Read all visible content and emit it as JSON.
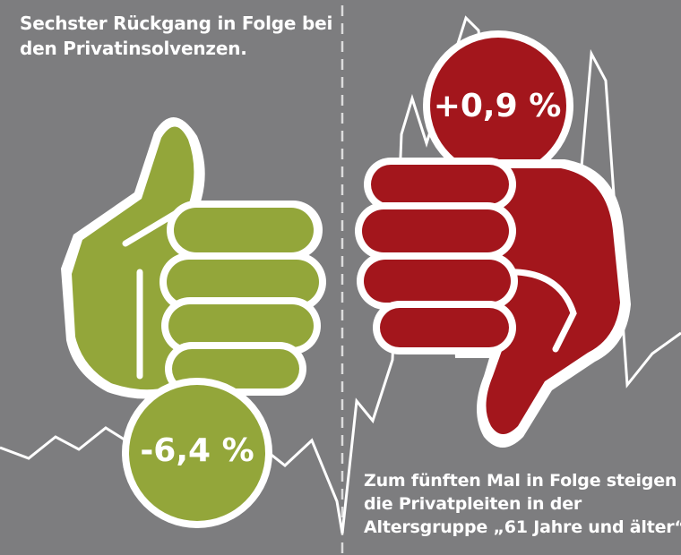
{
  "left": {
    "caption_lines": [
      "Sechster Rückgang in Folge bei",
      "den Privatinsolvenzen."
    ],
    "percent_label": "-6,4 %",
    "color": "#93a63a",
    "icon": "thumbs-up-icon"
  },
  "right": {
    "caption_lines": [
      "Zum fünften Mal in Folge steigen",
      "die Privatpleiten in der",
      "Altersgruppe „61 Jahre und älter“."
    ],
    "percent_label": "+0,9 %",
    "color": "#a3161c",
    "icon": "thumbs-down-icon"
  },
  "background_color": "#7d7d7f",
  "line_color": "#ffffff"
}
